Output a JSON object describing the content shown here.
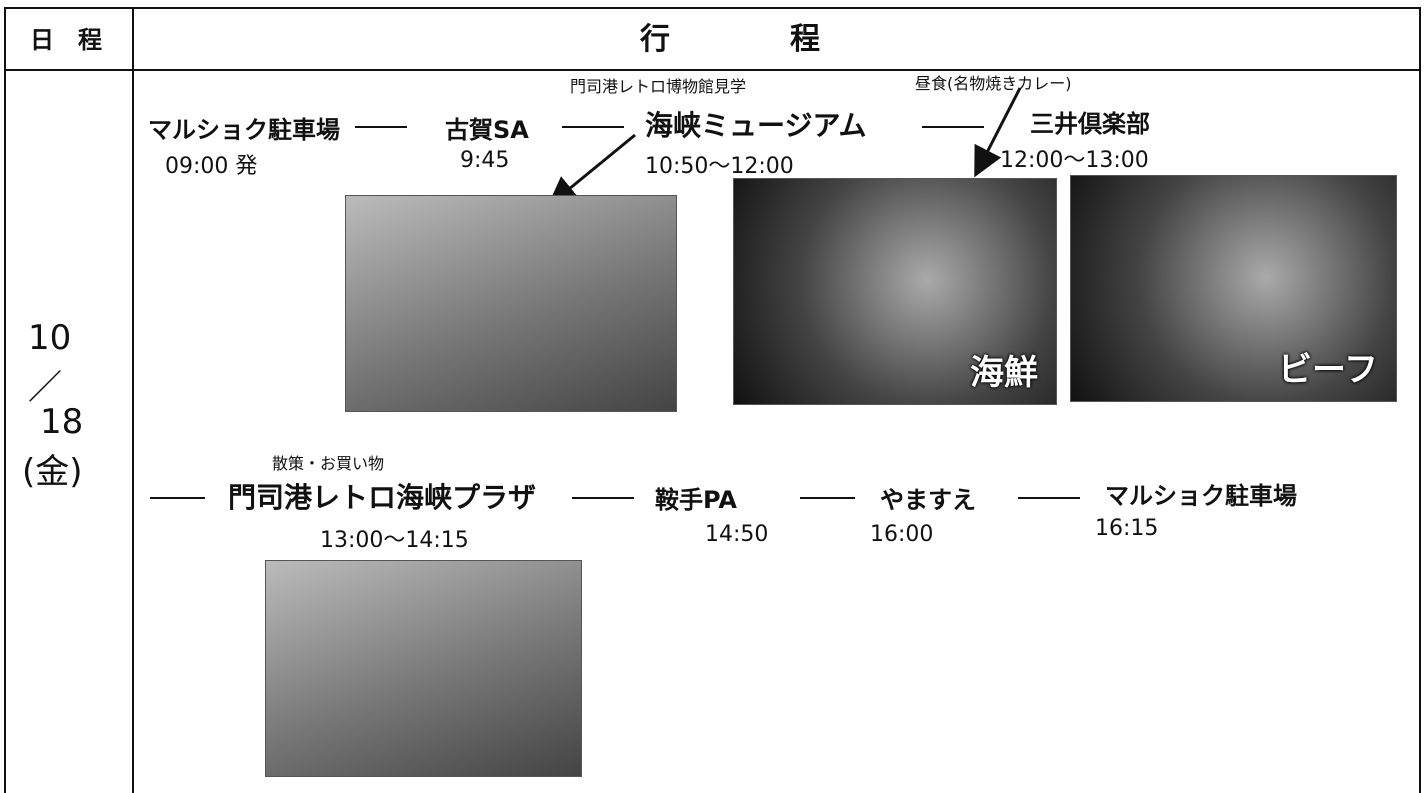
{
  "header": {
    "date": "日　程",
    "itinerary": "行　　　　程"
  },
  "date": {
    "month": "10",
    "slash": "／",
    "day": "18",
    "weekday": "(金)"
  },
  "row1": [
    {
      "name": "マルショク駐車場",
      "time": "09:00 発"
    },
    {
      "name": "古賀SA",
      "time": "9:45"
    },
    {
      "note": "門司港レトロ博物館見学",
      "name": "海峡ミュージアム",
      "time": "10:50〜12:00"
    },
    {
      "note": "昼食(名物焼きカレー)",
      "name": "三井倶楽部",
      "time": "12:00〜13:00"
    }
  ],
  "photos": {
    "seafood": "海鮮",
    "beef": "ビーフ"
  },
  "row2": [
    {
      "note": "散策・お買い物",
      "name": "門司港レトロ海峡プラザ",
      "time": "13:00〜14:15"
    },
    {
      "name": "鞍手PA",
      "time": "14:50"
    },
    {
      "name": "やますえ",
      "time": "16:00"
    },
    {
      "name": "マルショク駐車場",
      "time": "16:15"
    }
  ]
}
